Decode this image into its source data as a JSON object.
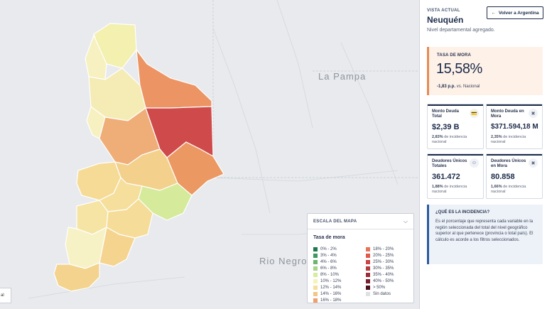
{
  "map": {
    "labels": {
      "la_pampa": "La Pampa",
      "rio_negro": "Rio Negro"
    },
    "corner_tag": "al"
  },
  "legend": {
    "title": "ESCALA DEL MAPA",
    "subtitle": "Tasa de mora",
    "items": [
      {
        "label": "0% - 2%",
        "color": "#1e7a4e"
      },
      {
        "label": "18% - 20%",
        "color": "#e7745a"
      },
      {
        "label": "3% - 4%",
        "color": "#3c9a5f"
      },
      {
        "label": "20% - 25%",
        "color": "#dd5a4f"
      },
      {
        "label": "4% - 6%",
        "color": "#6cb56d"
      },
      {
        "label": "25% - 30%",
        "color": "#cc4444"
      },
      {
        "label": "6% - 8%",
        "color": "#a6d48a"
      },
      {
        "label": "30% - 35%",
        "color": "#b43a3e"
      },
      {
        "label": "8% - 10%",
        "color": "#d8ec9e"
      },
      {
        "label": "35% - 40%",
        "color": "#9a2d38"
      },
      {
        "label": "10% - 12%",
        "color": "#f4f4b9"
      },
      {
        "label": "40% - 50%",
        "color": "#7a1f2e"
      },
      {
        "label": "12% - 14%",
        "color": "#f6df9b"
      },
      {
        "label": "> 50%",
        "color": "#4e1020"
      },
      {
        "label": "14% - 16%",
        "color": "#f3c687"
      },
      {
        "label": "Sin datos",
        "color": "#e0e0e0"
      },
      {
        "label": "16% - 18%",
        "color": "#ee9f6d"
      }
    ]
  },
  "panel": {
    "vista_label": "VISTA ACTUAL",
    "region": "Neuquén",
    "nivel": "Nivel departamental agregado.",
    "back_button": "Volver a Argentina",
    "mora": {
      "label": "TASA DE MORA",
      "value": "15,58%",
      "delta": "-1,83 p.p.",
      "vs": "vs. Nacional"
    },
    "kpis": [
      {
        "label": "Monto Deuda Total",
        "icon": "money-icon",
        "value": "$2,39 B",
        "pct": "2,83%",
        "note": "de incidencia nacional"
      },
      {
        "label": "Monto Deuda en Mora",
        "icon": "alert-money-icon",
        "value": "$371.594,18 M",
        "pct": "2,35%",
        "note": "de incidencia nacional"
      },
      {
        "label": "Deudores Únicos Totales",
        "icon": "users-icon",
        "value": "361.472",
        "pct": "1,88%",
        "note": "de incidencia nacional"
      },
      {
        "label": "Deudores Únicos en Mora",
        "icon": "user-alert-icon",
        "value": "80.858",
        "pct": "1,66%",
        "note": "de incidencia nacional"
      }
    ],
    "info": {
      "title": "¿QUÉ ES LA INCIDENCIA?",
      "text": "Es el porcentaje que representa cada variable en la región seleccionada del total del nivel geográfico superior al que pertenece (provincia o total país). El cálculo es acorde a los filtros seleccionados."
    }
  }
}
